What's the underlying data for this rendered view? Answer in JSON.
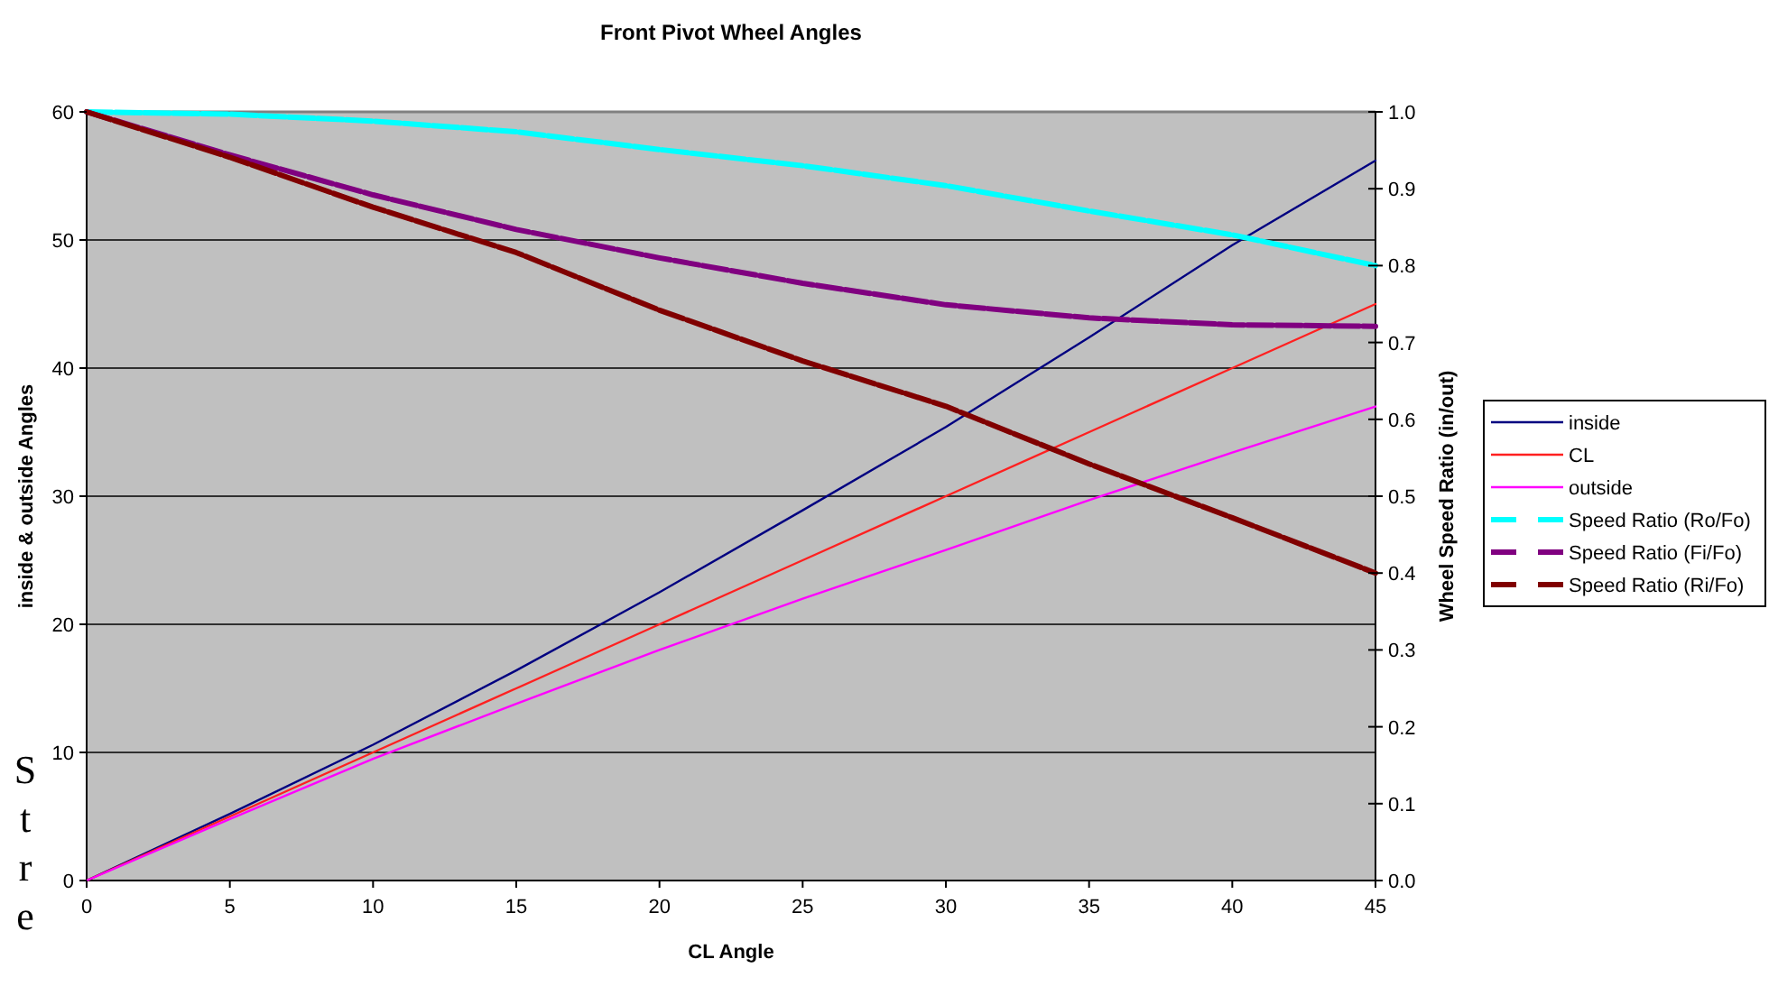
{
  "chart_data": {
    "type": "line",
    "title": "Front Pivot Wheel Angles",
    "xlabel": "CL Angle",
    "ylabel": "inside & outside Angles",
    "y2label": "Wheel Speed Ratio (in/out)",
    "x": [
      0,
      5,
      10,
      15,
      20,
      25,
      30,
      35,
      40,
      45
    ],
    "xlim": [
      0,
      45
    ],
    "xticks": [
      0,
      5,
      10,
      15,
      20,
      25,
      30,
      35,
      40,
      45
    ],
    "ylim": [
      0,
      60
    ],
    "yticks": [
      0,
      10,
      20,
      30,
      40,
      50,
      60
    ],
    "y2lim": [
      0,
      1
    ],
    "y2ticks": [
      {
        "value": 0,
        "label": "0.0"
      },
      {
        "value": 0.1,
        "label": "0.1"
      },
      {
        "value": 0.2,
        "label": "0.2"
      },
      {
        "value": 0.3,
        "label": "0.3"
      },
      {
        "value": 0.4,
        "label": "0.4"
      },
      {
        "value": 0.5,
        "label": "0.5"
      },
      {
        "value": 0.6,
        "label": "0.6"
      },
      {
        "value": 0.7,
        "label": "0.7"
      },
      {
        "value": 0.8,
        "label": "0.8"
      },
      {
        "value": 0.9,
        "label": "0.9"
      },
      {
        "value": 1,
        "label": "1.0"
      }
    ],
    "grid": "y",
    "legend": "right",
    "marker": "none",
    "series": [
      {
        "name": "inside",
        "color": "#000080",
        "values": [
          0,
          5.2,
          10.6,
          16.4,
          22.5,
          28.9,
          35.4,
          42.4,
          49.6,
          56.2
        ]
      },
      {
        "name": "CL",
        "color": "#ff2020",
        "values": [
          0,
          5,
          10,
          15,
          20,
          25,
          30,
          35,
          40,
          45
        ]
      },
      {
        "name": "outside",
        "color": "#ff00ff",
        "values": [
          0,
          4.8,
          9.5,
          13.8,
          18,
          22,
          25.8,
          29.7,
          33.4,
          37
        ]
      },
      {
        "name": "Speed Ratio (Ro/Fo)",
        "color": "#00ffff",
        "axis": "y2",
        "line_style": "dashed",
        "values": [
          1,
          0.997,
          0.988,
          0.974,
          0.951,
          0.93,
          0.904,
          0.871,
          0.84,
          0.8
        ]
      },
      {
        "name": "Speed Ratio (Fi/Fo)",
        "color": "#800080",
        "axis": "y2",
        "line_style": "dashed",
        "values": [
          1,
          0.944,
          0.892,
          0.847,
          0.81,
          0.777,
          0.749,
          0.732,
          0.723,
          0.721
        ]
      },
      {
        "name": "Speed Ratio (Ri/Fo)",
        "color": "#800000",
        "axis": "y2",
        "line_style": "dashed",
        "values": [
          1,
          0.941,
          0.876,
          0.817,
          0.742,
          0.676,
          0.617,
          0.542,
          0.472,
          0.4
        ]
      }
    ],
    "annotations": [
      "Stre"
    ]
  }
}
